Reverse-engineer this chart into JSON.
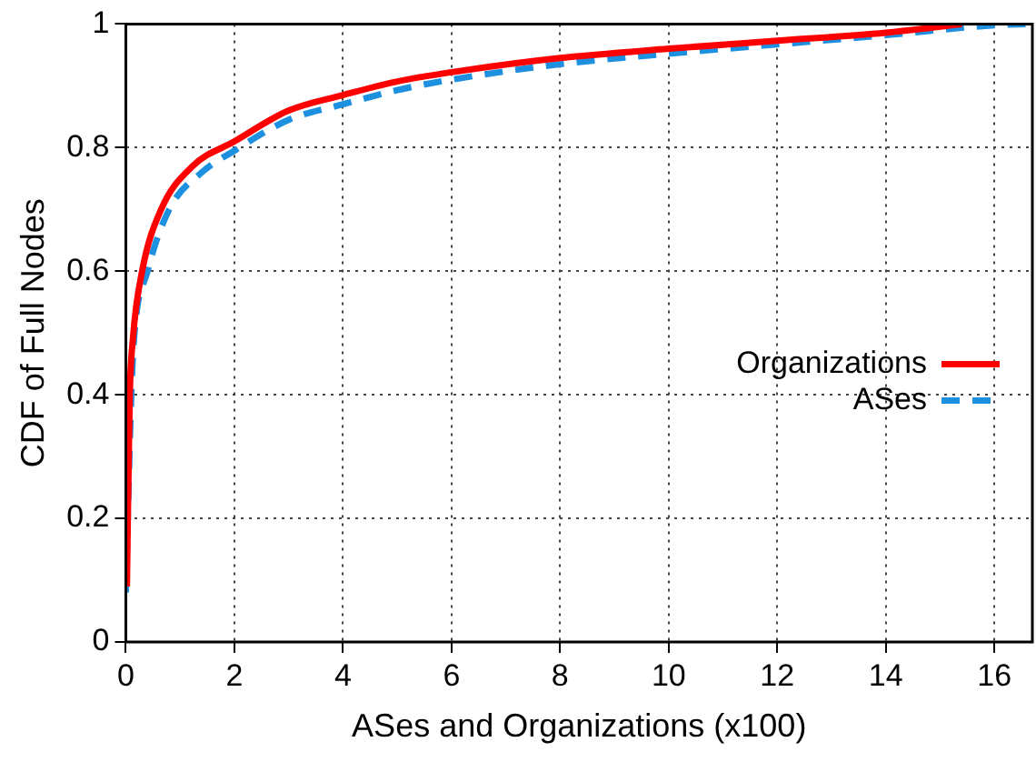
{
  "chart_data": {
    "type": "line",
    "xlabel": "ASes and Organizations (x100)",
    "ylabel": "CDF of Full Nodes",
    "xlim": [
      0,
      16.7
    ],
    "xticks": [
      0,
      2,
      4,
      6,
      8,
      10,
      12,
      14,
      16
    ],
    "ylim": [
      0,
      1
    ],
    "yticks": [
      0,
      {
        "value": 0.2,
        "label": "0.2"
      },
      {
        "value": 0.4,
        "label": "0.4"
      },
      {
        "value": 0.6,
        "label": "0.6"
      },
      {
        "value": 0.8,
        "label": "0.8"
      },
      1
    ],
    "grid": true,
    "legend": "right",
    "marker": "none",
    "series": [
      {
        "name": "Organizations",
        "color": "#ff0000",
        "line_style": "solid",
        "x": [
          0.02,
          0.07,
          0.13,
          0.3,
          0.65,
          1.23,
          2,
          3,
          4,
          5,
          6,
          8,
          10,
          12,
          14,
          15.4
        ],
        "values": [
          0.09,
          0.39,
          0.49,
          0.6,
          0.7,
          0.77,
          0.81,
          0.86,
          0.885,
          0.907,
          0.922,
          0.945,
          0.96,
          0.973,
          0.986,
          1
        ]
      },
      {
        "name": "ASes",
        "color": "#1e90e0",
        "line_style": "dashed",
        "x": [
          0,
          0.1,
          0.15,
          0.4,
          0.8,
          1.4,
          2,
          3,
          4,
          5,
          6,
          8,
          10,
          12,
          14,
          16,
          16.7
        ],
        "values": [
          0.08,
          0.4,
          0.49,
          0.6,
          0.7,
          0.76,
          0.795,
          0.845,
          0.87,
          0.893,
          0.91,
          0.935,
          0.952,
          0.967,
          0.982,
          0.998,
          1
        ]
      }
    ]
  }
}
